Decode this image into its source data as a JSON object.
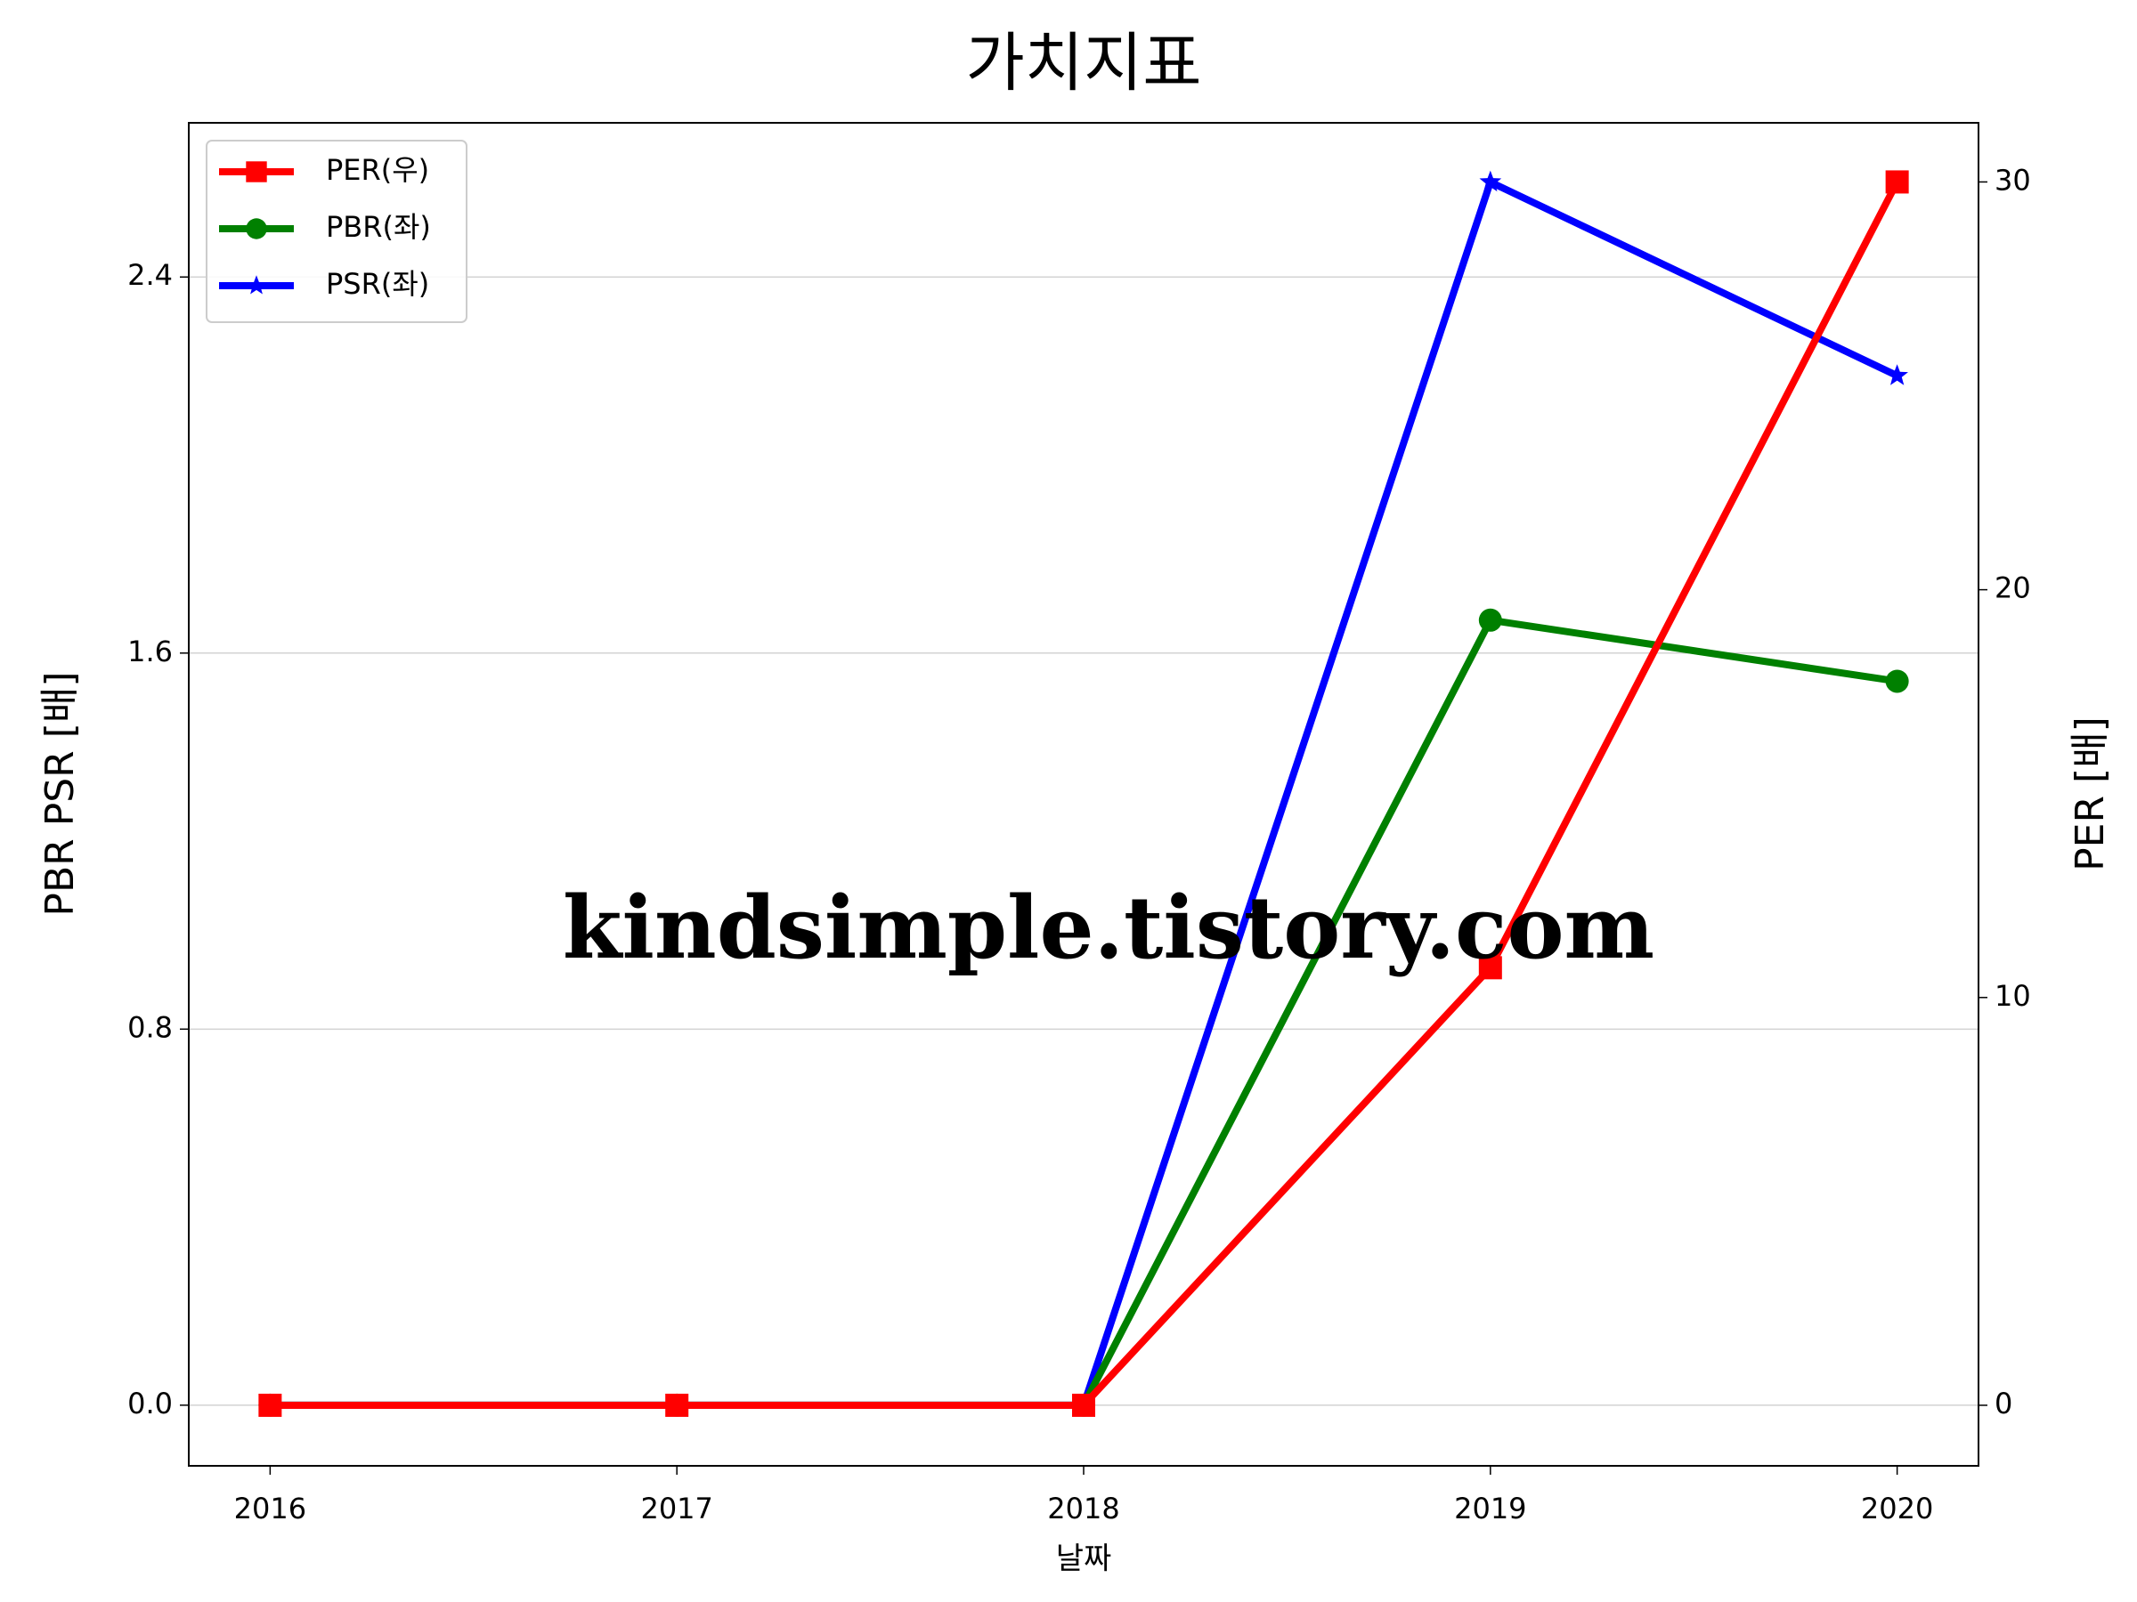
{
  "chart_data": {
    "type": "line",
    "title": "가치지표",
    "x_label": "날짜",
    "y_label": "PBR PSR [배]",
    "y2_label": "PER [배]",
    "y_label_color": "#008000",
    "y2_label_color": "#ff0000",
    "x": [
      2016,
      2017,
      2018,
      2019,
      2020
    ],
    "xlim": [
      2015.8,
      2020.2
    ],
    "xticks": [
      2016,
      2017,
      2018,
      2019,
      2020
    ],
    "ylim": [
      -0.129,
      2.728
    ],
    "yticks": [
      {
        "value": 0,
        "label": "0.0"
      },
      0.8,
      1.6,
      2.4
    ],
    "y2lim": [
      -1.485,
      31.45
    ],
    "y2ticks": [
      0,
      10,
      20,
      30
    ],
    "grid": true,
    "legend": "upper left",
    "annotation": "kindsimple.tistory.com",
    "series": [
      {
        "name": "PER(우)",
        "color": "#ff0000",
        "marker": "square",
        "axis": "y2",
        "values": [
          0,
          0,
          0,
          10.73,
          30.0
        ]
      },
      {
        "name": "PBR(좌)",
        "color": "#008000",
        "marker": "circle",
        "values": [
          0,
          0,
          0,
          1.67,
          1.54
        ]
      },
      {
        "name": "PSR(좌)",
        "color": "#0000ff",
        "marker": "star",
        "values": [
          0,
          0,
          0,
          2.602,
          2.19
        ]
      }
    ]
  }
}
